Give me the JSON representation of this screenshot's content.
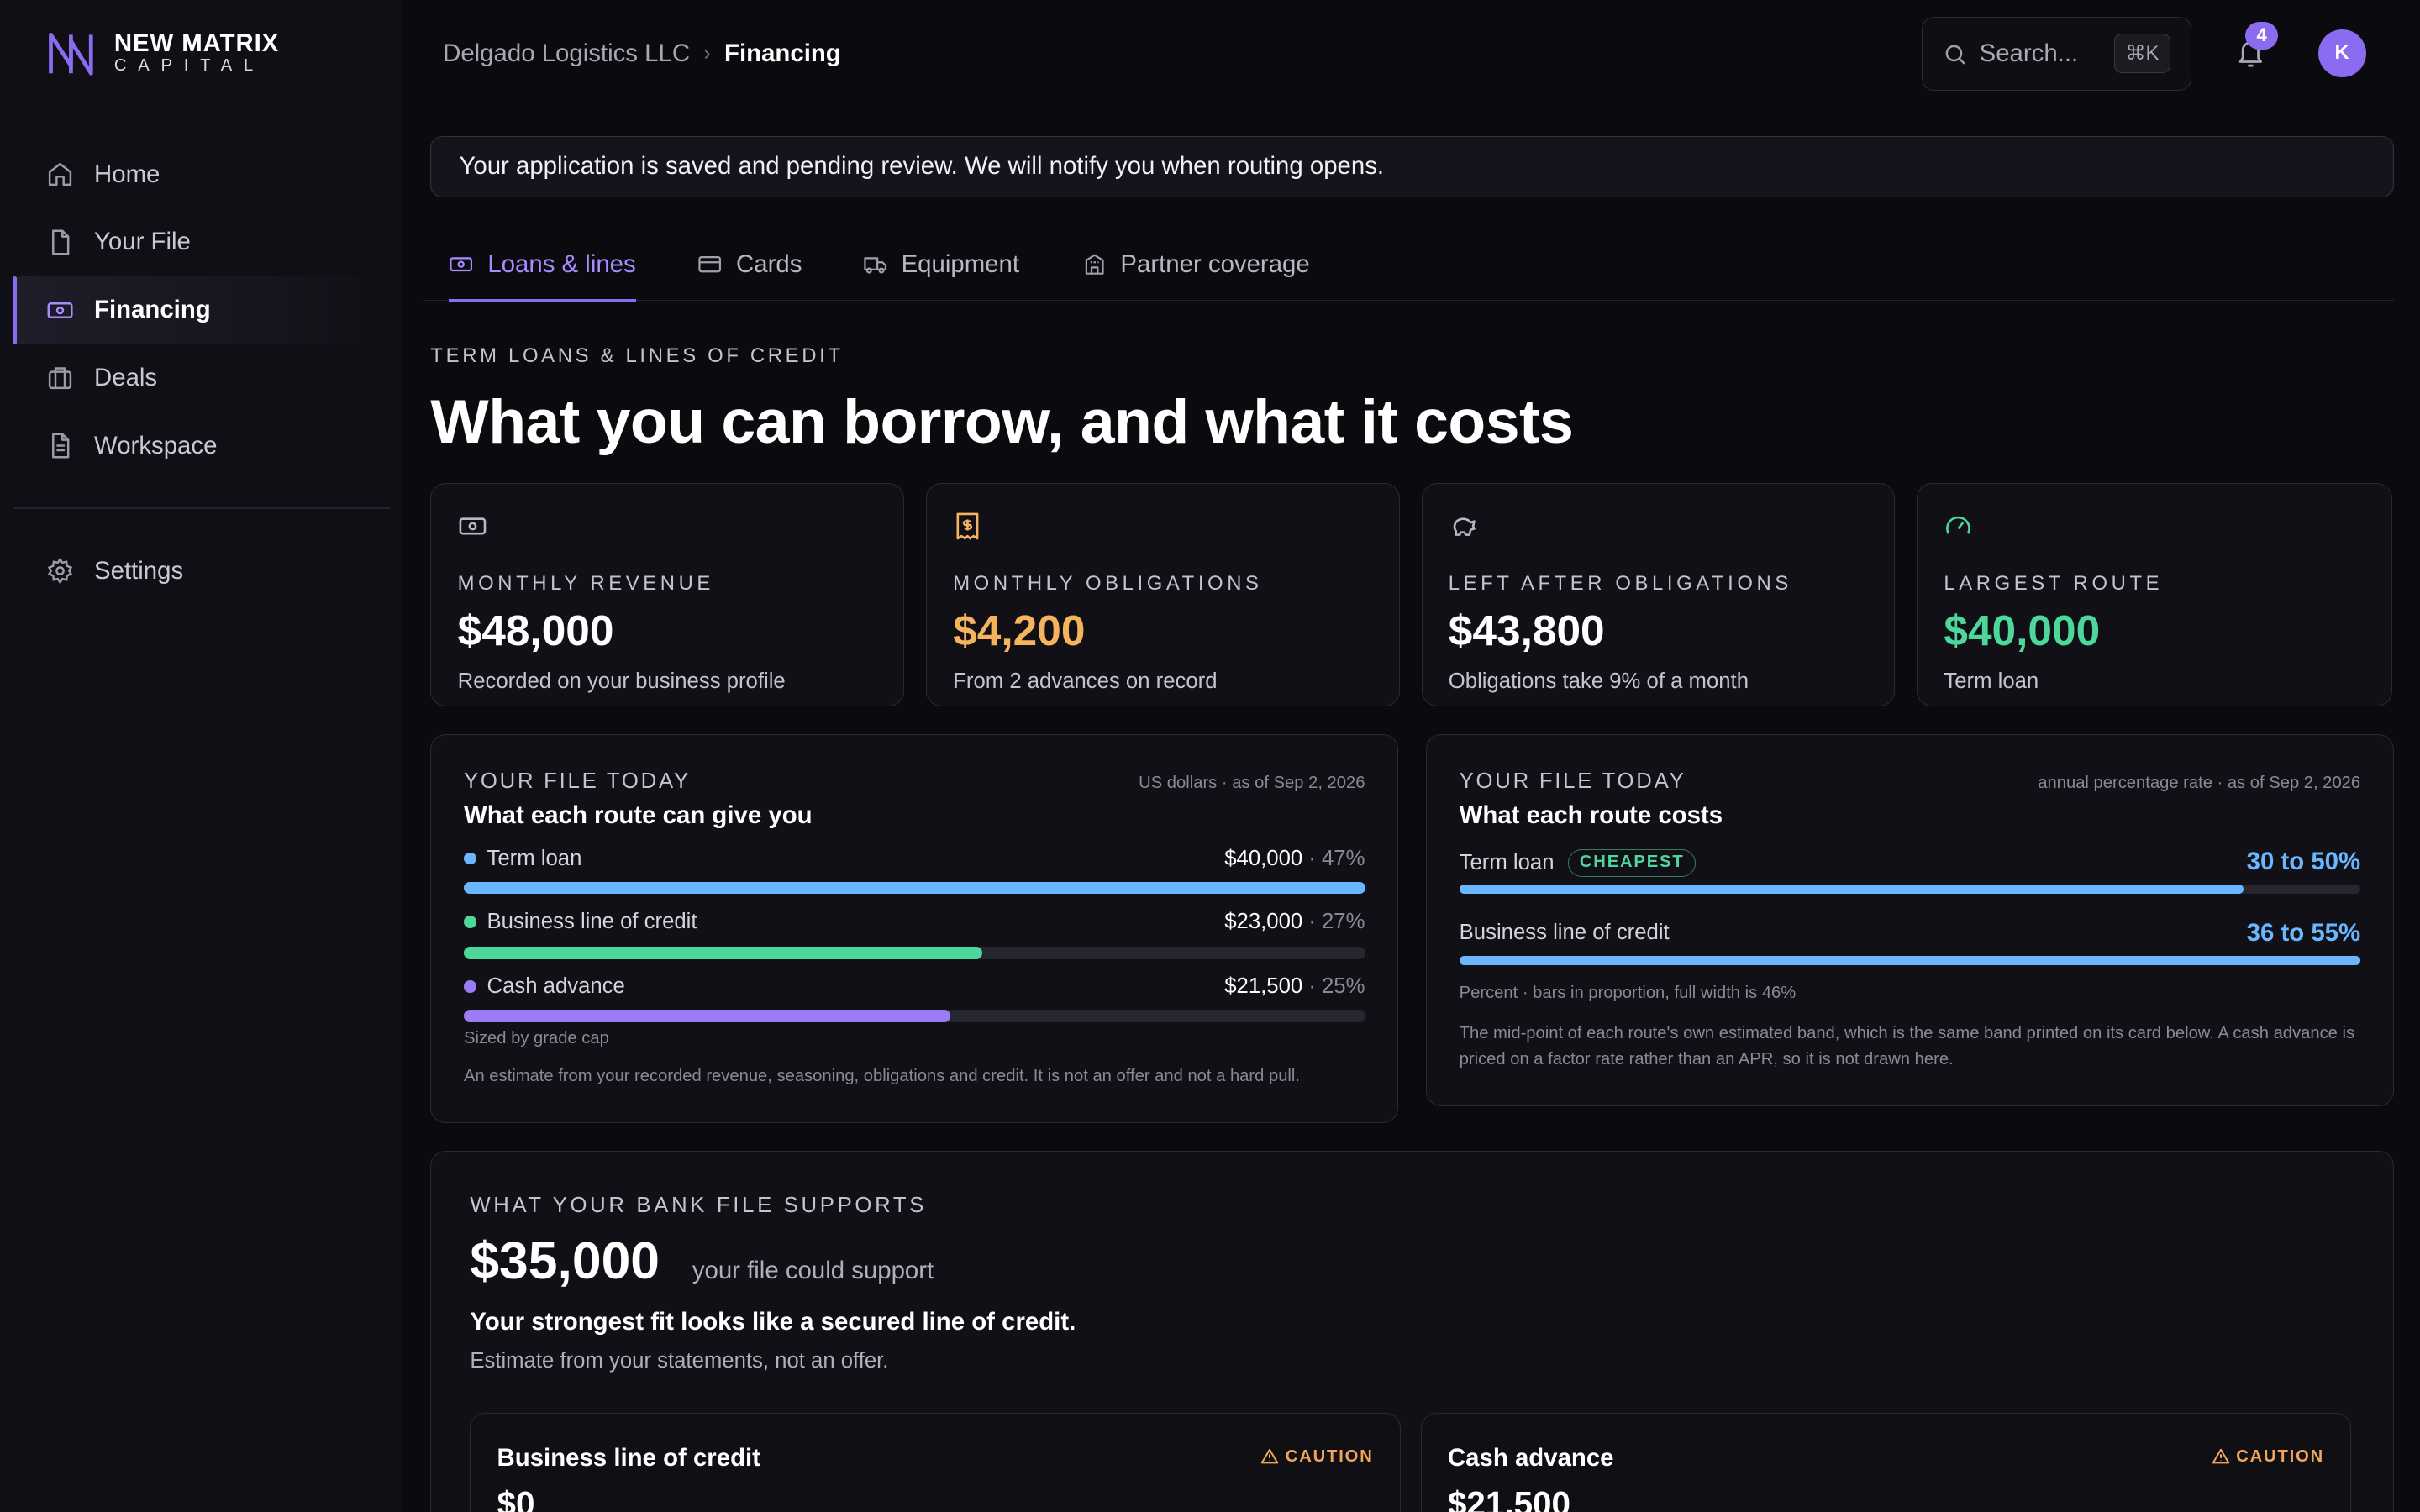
{
  "brand": {
    "name_line1": "NEW MATRIX",
    "name_line2": "CAPITAL"
  },
  "sidebar": {
    "items": [
      {
        "label": "Home",
        "icon": "home-icon"
      },
      {
        "label": "Your File",
        "icon": "file-icon"
      },
      {
        "label": "Financing",
        "icon": "banknote-icon",
        "active": true
      },
      {
        "label": "Deals",
        "icon": "briefcase-icon"
      },
      {
        "label": "Workspace",
        "icon": "document-icon"
      }
    ],
    "settings_label": "Settings"
  },
  "header": {
    "breadcrumb_root": "Delgado Logistics LLC",
    "breadcrumb_current": "Financing",
    "search_placeholder": "Search...",
    "search_shortcut": "⌘K",
    "notification_count": "4",
    "avatar_initial": "K"
  },
  "notice": "Your application is saved and pending review. We will notify you when routing opens.",
  "tabs": [
    {
      "label": "Loans & lines",
      "active": true
    },
    {
      "label": "Cards"
    },
    {
      "label": "Equipment"
    },
    {
      "label": "Partner coverage"
    }
  ],
  "section": {
    "eyebrow": "TERM LOANS & LINES OF CREDIT",
    "headline": "What you can borrow, and what it costs"
  },
  "stats": [
    {
      "label": "MONTHLY REVENUE",
      "value": "$48,000",
      "sub": "Recorded on your business profile",
      "color": "#ffffff",
      "icon": "banknote-icon"
    },
    {
      "label": "MONTHLY OBLIGATIONS",
      "value": "$4,200",
      "sub": "From 2 advances on record",
      "color": "#f5b35e",
      "icon": "receipt-icon"
    },
    {
      "label": "LEFT AFTER OBLIGATIONS",
      "value": "$43,800",
      "sub": "Obligations take 9% of a month",
      "color": "#ffffff",
      "icon": "piggy-bank-icon"
    },
    {
      "label": "LARGEST ROUTE",
      "value": "$40,000",
      "sub": "Term loan",
      "color": "#4ed79a",
      "icon": "gauge-icon"
    }
  ],
  "amounts_panel": {
    "eyebrow": "YOUR FILE TODAY",
    "title": "What each route can give you",
    "meta": "US dollars · as of Sep 2, 2026",
    "rows": [
      {
        "label": "Term loan",
        "value": "$40,000",
        "pct": "47%",
        "fill": 1.0,
        "color": "#6ab7ff"
      },
      {
        "label": "Business line of credit",
        "value": "$23,000",
        "pct": "27%",
        "fill": 0.575,
        "color": "#4ed79a"
      },
      {
        "label": "Cash advance",
        "value": "$21,500",
        "pct": "25%",
        "fill": 0.54,
        "color": "#9b7cf5"
      }
    ],
    "note_cap": "Sized by grade cap",
    "footnote": "An estimate from your recorded revenue, seasoning, obligations and credit. It is not an offer and not a hard pull."
  },
  "costs_panel": {
    "eyebrow": "YOUR FILE TODAY",
    "title": "What each route costs",
    "meta": "annual percentage rate · as of Sep 2, 2026",
    "rows": [
      {
        "label": "Term loan",
        "badge": "CHEAPEST",
        "value": "30 to 50%",
        "fill": 0.87,
        "color": "#6ab7ff"
      },
      {
        "label": "Business line of credit",
        "badge": "",
        "value": "36 to 55%",
        "fill": 1.0,
        "color": "#6ab7ff"
      }
    ],
    "scale_note": "Percent · bars in proportion, full width is 46%",
    "footnote": "The mid-point of each route's own estimated band, which is the same band printed on its card below. A cash advance is priced on a factor rate rather than an APR, so it is not drawn here."
  },
  "bank": {
    "eyebrow": "WHAT YOUR BANK FILE SUPPORTS",
    "amount": "$35,000",
    "amount_sub": "your file could support",
    "fit": "Your strongest fit looks like a secured line of credit.",
    "estimate": "Estimate from your statements, not an offer.",
    "cards": [
      {
        "title": "Business line of credit",
        "value": "$0",
        "tag": "CAUTION"
      },
      {
        "title": "Cash advance",
        "value": "$21,500",
        "tag": "CAUTION"
      }
    ]
  }
}
